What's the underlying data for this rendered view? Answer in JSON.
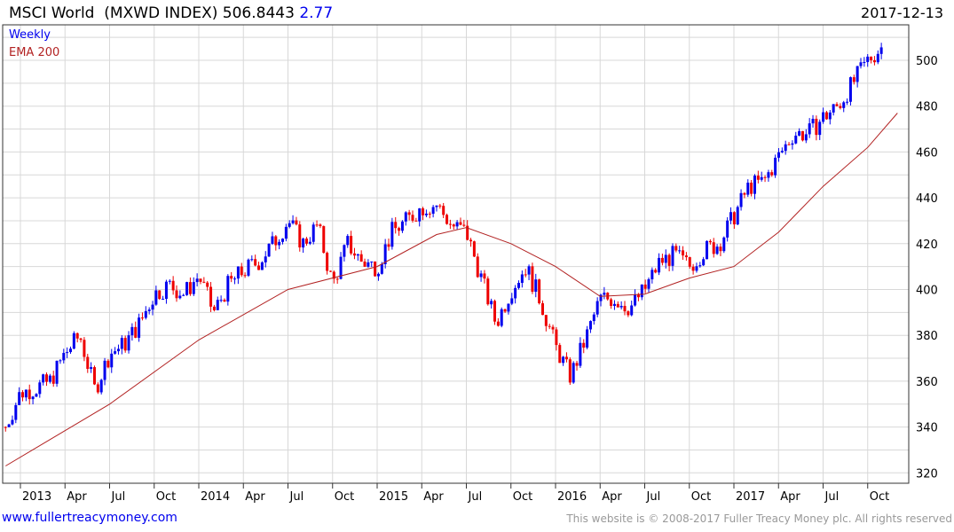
{
  "header": {
    "name": "MSCI World",
    "ticker": "(MXWD INDEX)",
    "price": "506.8443",
    "change": "2.77",
    "date": "2017-12-13"
  },
  "legend": {
    "period": "Weekly",
    "ema": "EMA 200"
  },
  "footer": {
    "site": "www.fullertreacymoney.com",
    "copyright": "This website is © 2008-2017 Fuller Treacy Money plc. All rights reserved"
  },
  "colors": {
    "up": "#0000ee",
    "down": "#ee0000",
    "ema": "#b22222",
    "grid": "#d8d8d8"
  },
  "chart_data": {
    "type": "candlestick",
    "title": "MSCI World (MXWD INDEX)",
    "ylim": [
      316,
      512
    ],
    "yticks": [
      320,
      340,
      360,
      380,
      400,
      420,
      440,
      460,
      480,
      500
    ],
    "xticks": [
      {
        "label": "2013",
        "m": 0
      },
      {
        "label": "Apr",
        "m": 3
      },
      {
        "label": "Jul",
        "m": 6
      },
      {
        "label": "Oct",
        "m": 9
      },
      {
        "label": "2014",
        "m": 12
      },
      {
        "label": "Apr",
        "m": 15
      },
      {
        "label": "Jul",
        "m": 18
      },
      {
        "label": "Oct",
        "m": 21
      },
      {
        "label": "2015",
        "m": 24
      },
      {
        "label": "Apr",
        "m": 27
      },
      {
        "label": "Jul",
        "m": 30
      },
      {
        "label": "Oct",
        "m": 33
      },
      {
        "label": "2016",
        "m": 36
      },
      {
        "label": "Apr",
        "m": 39
      },
      {
        "label": "Jul",
        "m": 42
      },
      {
        "label": "Oct",
        "m": 45
      },
      {
        "label": "2017",
        "m": 48
      },
      {
        "label": "Apr",
        "m": 51
      },
      {
        "label": "Jul",
        "m": 54
      },
      {
        "label": "Oct",
        "m": 57
      }
    ],
    "monthly_close_approx_from_dec2012": [
      340,
      355,
      357,
      360,
      372,
      380,
      356,
      372,
      376,
      385,
      398,
      402,
      398,
      406,
      390,
      402,
      408,
      412,
      420,
      430,
      420,
      428,
      402,
      420,
      412,
      410,
      425,
      430,
      436,
      437,
      428,
      425,
      405,
      385,
      400,
      410,
      395,
      375,
      362,
      378,
      396,
      396,
      392,
      400,
      412,
      415,
      410,
      417,
      420,
      432,
      445,
      447,
      458,
      468,
      468,
      475,
      480,
      490,
      500,
      506
    ],
    "ema200_approx": [
      [
        -1,
        323
      ],
      [
        6,
        350
      ],
      [
        12,
        378
      ],
      [
        18,
        400
      ],
      [
        24,
        410
      ],
      [
        28,
        424
      ],
      [
        30,
        427
      ],
      [
        33,
        420
      ],
      [
        36,
        410
      ],
      [
        39,
        397
      ],
      [
        42,
        398
      ],
      [
        45,
        405
      ],
      [
        48,
        410
      ],
      [
        51,
        425
      ],
      [
        54,
        445
      ],
      [
        57,
        462
      ],
      [
        59,
        477
      ]
    ]
  }
}
